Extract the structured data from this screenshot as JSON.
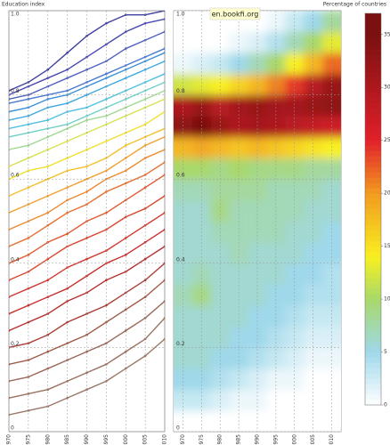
{
  "chart_data": [
    {
      "type": "line",
      "ylabel": "Education index",
      "x": [
        1970,
        1975,
        1980,
        1985,
        1990,
        1995,
        2000,
        2005,
        2010
      ],
      "xlim": [
        1970,
        2010
      ],
      "xticks": [
        1970,
        1975,
        1980,
        1985,
        1990,
        1995,
        2000,
        2005,
        2010
      ],
      "ylim": [
        0,
        1
      ],
      "yticks": [
        0,
        0.2,
        0.4,
        0.6,
        0.8,
        {
          "value": 1,
          "label": "1.0"
        }
      ],
      "grid": true,
      "series": [
        {
          "color": "#4040a0",
          "values": [
            0.81,
            0.83,
            0.86,
            0.9,
            0.94,
            0.97,
            0.99,
            0.99,
            1.0
          ]
        },
        {
          "color": "#4848b0",
          "values": [
            0.8,
            0.82,
            0.84,
            0.86,
            0.89,
            0.92,
            0.95,
            0.97,
            0.98
          ]
        },
        {
          "color": "#5060c0",
          "values": [
            0.79,
            0.8,
            0.82,
            0.84,
            0.86,
            0.88,
            0.91,
            0.93,
            0.95
          ]
        },
        {
          "color": "#4a78d0",
          "values": [
            0.78,
            0.79,
            0.8,
            0.81,
            0.83,
            0.85,
            0.87,
            0.89,
            0.91
          ]
        },
        {
          "color": "#3f90d8",
          "values": [
            0.76,
            0.77,
            0.79,
            0.8,
            0.82,
            0.84,
            0.86,
            0.88,
            0.9
          ]
        },
        {
          "color": "#40a8e0",
          "values": [
            0.74,
            0.75,
            0.77,
            0.78,
            0.8,
            0.82,
            0.84,
            0.86,
            0.88
          ]
        },
        {
          "color": "#50c0e0",
          "values": [
            0.72,
            0.73,
            0.74,
            0.76,
            0.77,
            0.79,
            0.81,
            0.83,
            0.85
          ]
        },
        {
          "color": "#70d0c8",
          "values": [
            0.7,
            0.71,
            0.72,
            0.73,
            0.75,
            0.77,
            0.79,
            0.81,
            0.83
          ]
        },
        {
          "color": "#a0d890",
          "values": [
            0.67,
            0.68,
            0.7,
            0.72,
            0.74,
            0.75,
            0.77,
            0.79,
            0.81
          ]
        },
        {
          "color": "#d8e050",
          "values": [
            0.63,
            0.65,
            0.67,
            0.69,
            0.71,
            0.73,
            0.75,
            0.77,
            0.79
          ]
        },
        {
          "color": "#f0e030",
          "values": [
            0.6,
            0.62,
            0.63,
            0.65,
            0.67,
            0.69,
            0.71,
            0.73,
            0.76
          ]
        },
        {
          "color": "#f5c030",
          "values": [
            0.56,
            0.58,
            0.6,
            0.62,
            0.63,
            0.65,
            0.68,
            0.7,
            0.72
          ]
        },
        {
          "color": "#f0a030",
          "values": [
            0.52,
            0.54,
            0.56,
            0.58,
            0.6,
            0.62,
            0.65,
            0.68,
            0.7
          ]
        },
        {
          "color": "#eb8a30",
          "values": [
            0.48,
            0.5,
            0.52,
            0.55,
            0.57,
            0.6,
            0.62,
            0.65,
            0.67
          ]
        },
        {
          "color": "#e57030",
          "values": [
            0.44,
            0.46,
            0.49,
            0.52,
            0.54,
            0.57,
            0.59,
            0.61,
            0.64
          ]
        },
        {
          "color": "#e05a30",
          "values": [
            0.4,
            0.42,
            0.45,
            0.47,
            0.5,
            0.52,
            0.55,
            0.58,
            0.61
          ]
        },
        {
          "color": "#d84a30",
          "values": [
            0.36,
            0.38,
            0.41,
            0.44,
            0.46,
            0.48,
            0.51,
            0.53,
            0.56
          ]
        },
        {
          "color": "#d03a30",
          "values": [
            0.32,
            0.34,
            0.36,
            0.39,
            0.41,
            0.43,
            0.46,
            0.49,
            0.52
          ]
        },
        {
          "color": "#c83030",
          "values": [
            0.28,
            0.3,
            0.32,
            0.34,
            0.37,
            0.4,
            0.42,
            0.45,
            0.48
          ]
        },
        {
          "color": "#b83030",
          "values": [
            0.24,
            0.26,
            0.28,
            0.31,
            0.33,
            0.36,
            0.38,
            0.41,
            0.44
          ]
        },
        {
          "color": "#a84038",
          "values": [
            0.2,
            0.21,
            0.23,
            0.26,
            0.28,
            0.3,
            0.33,
            0.36,
            0.4
          ]
        },
        {
          "color": "#a05a48",
          "values": [
            0.16,
            0.17,
            0.19,
            0.21,
            0.23,
            0.26,
            0.29,
            0.32,
            0.36
          ]
        },
        {
          "color": "#9a6858",
          "values": [
            0.12,
            0.13,
            0.15,
            0.17,
            0.19,
            0.21,
            0.24,
            0.27,
            0.31
          ]
        },
        {
          "color": "#9a7060",
          "values": [
            0.08,
            0.09,
            0.1,
            0.12,
            0.14,
            0.16,
            0.19,
            0.22,
            0.27
          ]
        },
        {
          "color": "#9a7868",
          "values": [
            0.04,
            0.05,
            0.06,
            0.08,
            0.1,
            0.12,
            0.15,
            0.18,
            0.22
          ]
        }
      ]
    },
    {
      "type": "heatmap",
      "annotation": "en.bookfi.org",
      "categories": [
        1970,
        1975,
        1980,
        1985,
        1990,
        1995,
        2000,
        2005,
        2010
      ],
      "xlim": [
        1967.5,
        2012.5
      ],
      "xticks": [
        1970,
        1975,
        1980,
        1985,
        1990,
        1995,
        2000,
        2005,
        2010
      ],
      "ylim": [
        0,
        1
      ],
      "yticks": [
        0,
        0.2,
        0.4,
        0.6,
        0.8,
        {
          "value": 1,
          "label": "1.0"
        }
      ],
      "grid": true,
      "ybins": [
        0,
        0.05,
        0.1,
        0.15,
        0.2,
        0.25,
        0.3,
        0.35,
        0.4,
        0.45,
        0.5,
        0.55,
        0.6,
        0.65,
        0.7,
        0.75,
        0.8,
        0.85,
        0.9,
        0.95,
        1.0
      ],
      "z": [
        [
          0,
          0,
          0,
          0,
          0,
          0,
          0,
          0,
          0
        ],
        [
          3,
          3,
          2,
          1,
          1,
          0,
          0,
          0,
          0
        ],
        [
          5,
          5,
          4,
          3,
          2,
          1,
          1,
          0,
          0
        ],
        [
          6,
          6,
          5,
          5,
          4,
          3,
          2,
          1,
          1
        ],
        [
          6,
          6,
          6,
          5,
          5,
          4,
          3,
          2,
          2
        ],
        [
          6,
          6,
          6,
          6,
          5,
          5,
          4,
          3,
          3
        ],
        [
          7,
          9,
          6,
          6,
          6,
          5,
          5,
          4,
          4
        ],
        [
          6,
          7,
          6,
          6,
          6,
          6,
          5,
          5,
          4
        ],
        [
          6,
          6,
          6,
          7,
          6,
          6,
          6,
          5,
          5
        ],
        [
          6,
          6,
          7,
          7,
          7,
          7,
          6,
          6,
          5
        ],
        [
          6,
          6,
          9,
          7,
          7,
          7,
          7,
          6,
          6
        ],
        [
          7,
          7,
          8,
          8,
          8,
          7,
          7,
          7,
          6
        ],
        [
          10,
          10,
          9,
          10,
          9,
          9,
          9,
          8,
          8
        ],
        [
          18,
          19,
          18,
          17,
          18,
          17,
          16,
          15,
          14
        ],
        [
          33,
          35,
          32,
          30,
          31,
          30,
          29,
          28,
          27
        ],
        [
          30,
          32,
          29,
          31,
          32,
          31,
          31,
          32,
          33
        ],
        [
          12,
          13,
          14,
          16,
          18,
          21,
          24,
          29,
          32
        ],
        [
          1,
          2,
          3,
          5,
          7,
          10,
          14,
          18,
          22
        ],
        [
          0,
          0,
          0,
          1,
          2,
          4,
          7,
          10,
          13
        ],
        [
          0,
          0,
          0,
          0,
          0,
          1,
          3,
          5,
          8
        ]
      ],
      "colorbar": {
        "label": "Percentage of countries",
        "lim": [
          0,
          37
        ],
        "ticks": [
          0,
          5,
          10,
          15,
          20,
          25,
          30,
          35
        ],
        "colorscale": [
          [
            0,
            "#ffffff"
          ],
          [
            5,
            "#9fd8ea"
          ],
          [
            10,
            "#a8d86a"
          ],
          [
            14,
            "#f8f020"
          ],
          [
            20,
            "#f29a20"
          ],
          [
            25,
            "#e2202a"
          ],
          [
            35,
            "#7a1010"
          ]
        ]
      }
    }
  ]
}
